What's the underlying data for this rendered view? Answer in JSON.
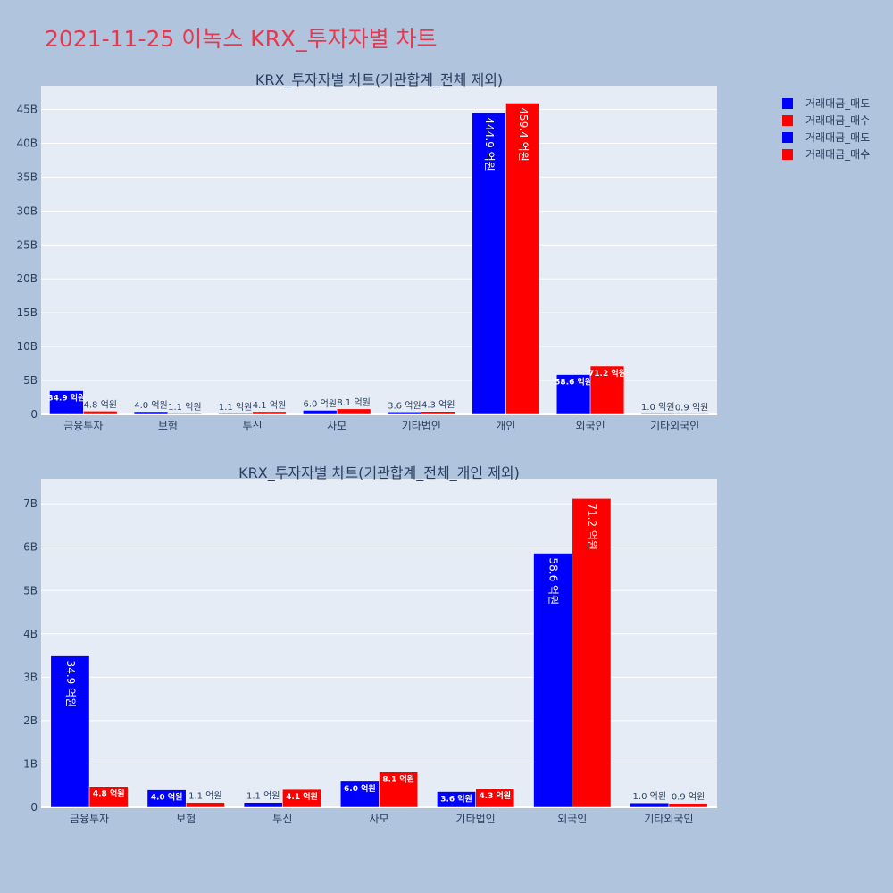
{
  "title": "2021-11-25 이녹스 KRX_투자자별 차트",
  "colors": {
    "sell": "#0000ff",
    "buy": "#ff0000",
    "plot_bg": "#e5ecf6",
    "page_bg": "#b0c4de",
    "text": "#2a3f5f"
  },
  "legend": [
    {
      "label": "거래대금_매도",
      "color": "#0000ff"
    },
    {
      "label": "거래대금_매수",
      "color": "#ff0000"
    },
    {
      "label": "거래대금_매도",
      "color": "#0000ff"
    },
    {
      "label": "거래대금_매수",
      "color": "#ff0000"
    }
  ],
  "chart_data": [
    {
      "type": "bar",
      "title": "KRX_투자자별 차트(기관합계_전체 제외)",
      "categories": [
        "금융투자",
        "보험",
        "투신",
        "사모",
        "기타법인",
        "개인",
        "외국인",
        "기타외국인"
      ],
      "series": [
        {
          "name": "거래대금_매도",
          "values": [
            3490000000,
            400000000,
            110000000,
            600000000,
            360000000,
            44490000000,
            5860000000,
            100000000
          ],
          "labels": [
            "34.9 억원",
            "4.0 억원",
            "1.1 억원",
            "6.0 억원",
            "3.6 억원",
            "444.9 억원",
            "58.6 억원",
            "1.0 억원"
          ]
        },
        {
          "name": "거래대금_매수",
          "values": [
            480000000,
            110000000,
            410000000,
            810000000,
            430000000,
            45940000000,
            7120000000,
            90000000
          ],
          "labels": [
            "4.8 억원",
            "1.1 억원",
            "4.1 억원",
            "8.1 억원",
            "4.3 억원",
            "459.4 억원",
            "71.2 억원",
            "0.9 억원"
          ]
        }
      ],
      "ylim": [
        0,
        48500000000
      ],
      "yticks": [
        0,
        5000000000,
        10000000000,
        15000000000,
        20000000000,
        25000000000,
        30000000000,
        35000000000,
        40000000000,
        45000000000
      ],
      "ytick_labels": [
        "0",
        "5B",
        "10B",
        "15B",
        "20B",
        "25B",
        "30B",
        "35B",
        "40B",
        "45B"
      ],
      "grid": true
    },
    {
      "type": "bar",
      "title": "KRX_투자자별 차트(기관합계_전체_개인 제외)",
      "categories": [
        "금융투자",
        "보험",
        "투신",
        "사모",
        "기타법인",
        "외국인",
        "기타외국인"
      ],
      "series": [
        {
          "name": "거래대금_매도",
          "values": [
            3490000000,
            400000000,
            110000000,
            600000000,
            360000000,
            5860000000,
            100000000
          ],
          "labels": [
            "34.9 억원",
            "4.0 억원",
            "1.1 억원",
            "6.0 억원",
            "3.6 억원",
            "58.6 억원",
            "1.0 억원"
          ]
        },
        {
          "name": "거래대금_매수",
          "values": [
            480000000,
            110000000,
            410000000,
            810000000,
            430000000,
            7120000000,
            90000000
          ],
          "labels": [
            "4.8 억원",
            "1.1 억원",
            "4.1 억원",
            "8.1 억원",
            "4.3 억원",
            "71.2 억원",
            "0.9 억원"
          ]
        }
      ],
      "ylim": [
        0,
        7580000000
      ],
      "yticks": [
        0,
        1000000000,
        2000000000,
        3000000000,
        4000000000,
        5000000000,
        6000000000,
        7000000000
      ],
      "ytick_labels": [
        "0",
        "1B",
        "2B",
        "3B",
        "4B",
        "5B",
        "6B",
        "7B"
      ],
      "grid": true
    }
  ]
}
